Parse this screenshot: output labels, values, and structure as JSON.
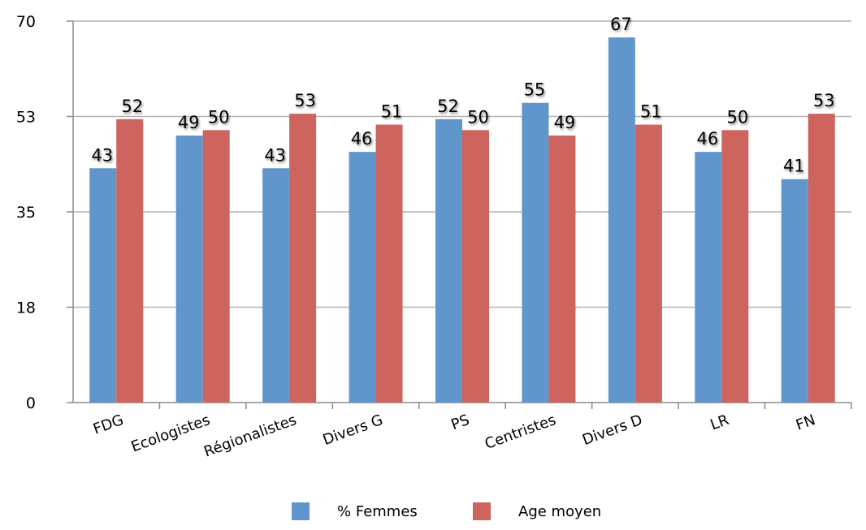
{
  "chart_data": {
    "type": "bar",
    "categories": [
      "FDG",
      "Ecologistes",
      "Régionalistes",
      "Divers G",
      "PS",
      "Centristes",
      "Divers D",
      "LR",
      "FN"
    ],
    "series": [
      {
        "name": "% Femmes",
        "values": [
          43,
          49,
          43,
          46,
          52,
          55,
          67,
          46,
          41
        ],
        "color": "#6096CC"
      },
      {
        "name": "Age moyen",
        "values": [
          52,
          50,
          53,
          51,
          50,
          49,
          51,
          50,
          53
        ],
        "color": "#CE645E"
      }
    ],
    "yticks": [
      "0",
      "18",
      "35",
      "53",
      "70"
    ],
    "ylim": [
      0,
      70
    ],
    "grid": true,
    "legend_position": "bottom",
    "title": "",
    "xlabel": "",
    "ylabel": ""
  }
}
